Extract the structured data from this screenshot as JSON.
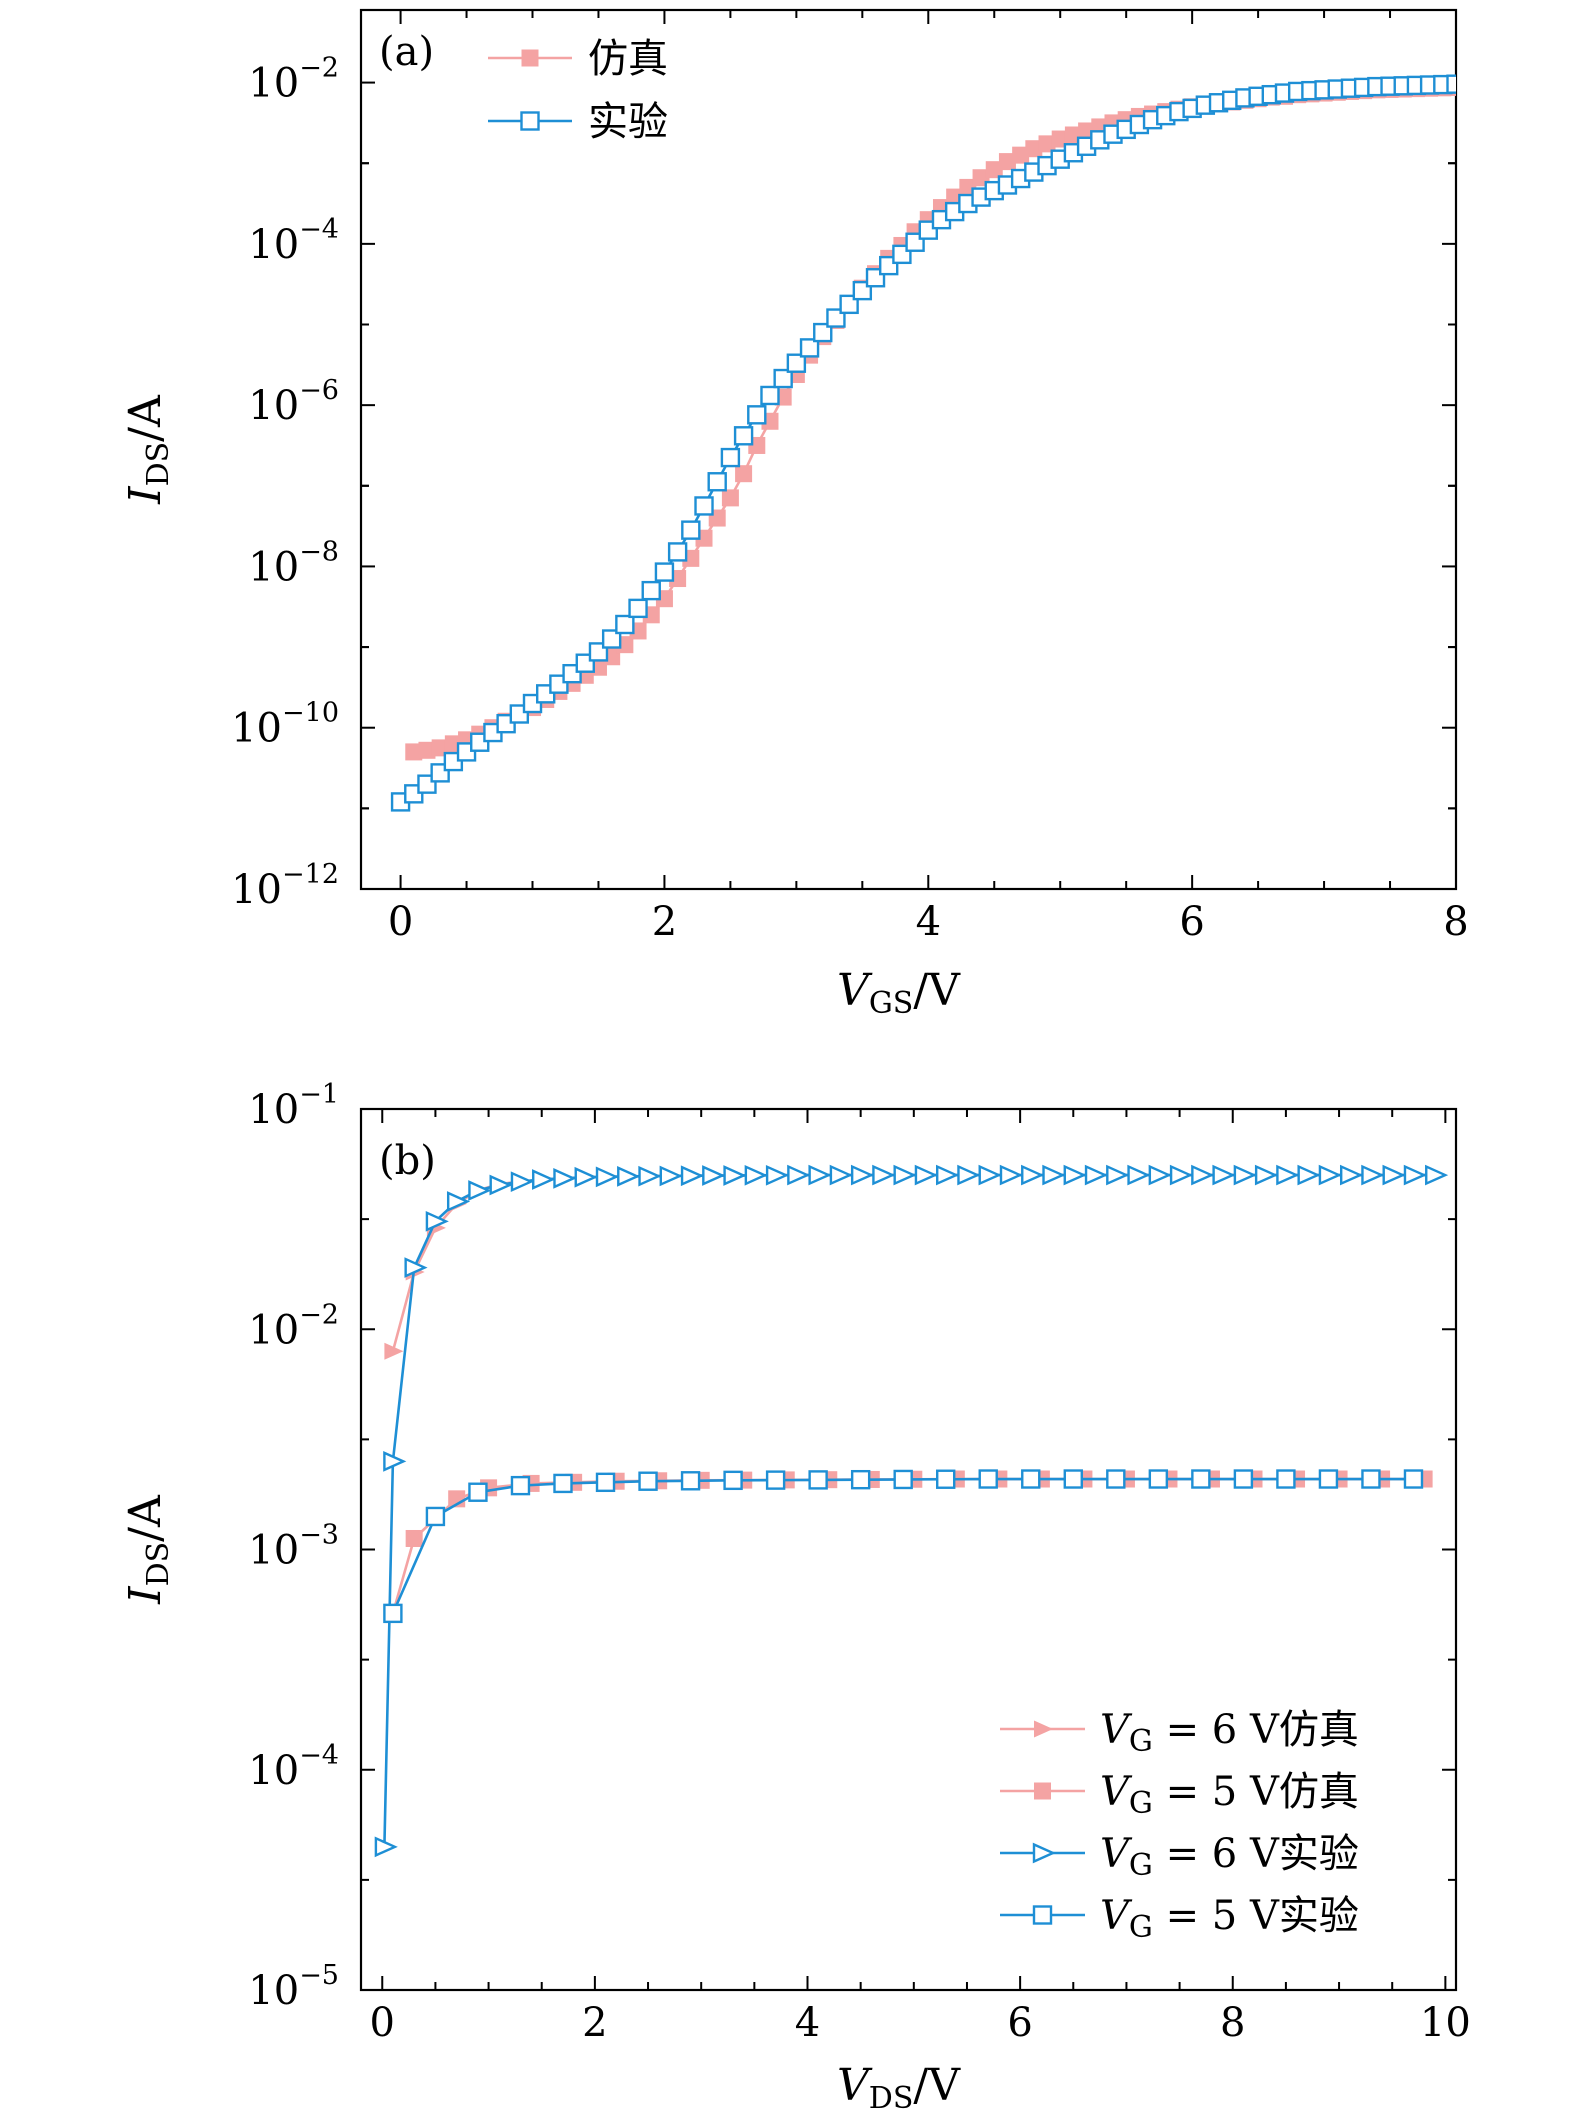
{
  "chart_data": [
    {
      "type": "line",
      "panel_label": "(a)",
      "title": "",
      "xlabel": {
        "main": "V",
        "sub": "GS",
        "unit": "/V"
      },
      "ylabel": {
        "main": "I",
        "sub": "DS",
        "unit": "/A"
      },
      "xlim": [
        -0.3,
        8
      ],
      "ylim_log10": [
        -12,
        -1.1
      ],
      "yscale": "log",
      "xticks": [
        0,
        2,
        4,
        6,
        8
      ],
      "xtick_labels": [
        "0",
        "2",
        "4",
        "6",
        "8"
      ],
      "yticks_exp": [
        -12,
        -10,
        -8,
        -6,
        -4,
        -2
      ],
      "ytick_labels": [
        {
          "base": "10",
          "exp": "−12"
        },
        {
          "base": "10",
          "exp": "−10"
        },
        {
          "base": "10",
          "exp": "−8"
        },
        {
          "base": "10",
          "exp": "−6"
        },
        {
          "base": "10",
          "exp": "−4"
        },
        {
          "base": "10",
          "exp": "−2"
        }
      ],
      "legend_position": "top-left",
      "series": [
        {
          "name": "仿真",
          "marker": "square-filled",
          "color": "#F4A3A3",
          "x": [
            0.1,
            0.2,
            0.3,
            0.4,
            0.5,
            0.6,
            0.7,
            0.8,
            0.9,
            1.0,
            1.1,
            1.2,
            1.3,
            1.4,
            1.5,
            1.6,
            1.7,
            1.8,
            1.9,
            2.0,
            2.1,
            2.2,
            2.3,
            2.4,
            2.5,
            2.6,
            2.7,
            2.8,
            2.9,
            3.0,
            3.1,
            3.2,
            3.3,
            3.4,
            3.5,
            3.6,
            3.7,
            3.8,
            3.9,
            4.0,
            4.1,
            4.2,
            4.3,
            4.4,
            4.5,
            4.6,
            4.7,
            4.8,
            4.9,
            5.0,
            5.1,
            5.2,
            5.3,
            5.4,
            5.5,
            5.6,
            5.7,
            5.8,
            5.9,
            6.0,
            6.1,
            6.2,
            6.3,
            6.4,
            6.5,
            6.6,
            6.7,
            6.8,
            6.9,
            7.0,
            7.1,
            7.2,
            7.3,
            7.4,
            7.5,
            7.6,
            7.7,
            7.8,
            7.9,
            8.0
          ],
          "log10_y": [
            -10.3,
            -10.28,
            -10.25,
            -10.2,
            -10.15,
            -10.08,
            -10.0,
            -9.92,
            -9.83,
            -9.75,
            -9.65,
            -9.55,
            -9.45,
            -9.35,
            -9.25,
            -9.12,
            -8.97,
            -8.8,
            -8.6,
            -8.4,
            -8.15,
            -7.9,
            -7.65,
            -7.4,
            -7.15,
            -6.85,
            -6.5,
            -6.2,
            -5.9,
            -5.62,
            -5.38,
            -5.15,
            -4.95,
            -4.75,
            -4.55,
            -4.37,
            -4.18,
            -4.02,
            -3.85,
            -3.7,
            -3.55,
            -3.42,
            -3.3,
            -3.18,
            -3.08,
            -2.98,
            -2.9,
            -2.82,
            -2.76,
            -2.7,
            -2.65,
            -2.6,
            -2.55,
            -2.5,
            -2.46,
            -2.42,
            -2.39,
            -2.36,
            -2.33,
            -2.3,
            -2.28,
            -2.26,
            -2.24,
            -2.22,
            -2.2,
            -2.18,
            -2.17,
            -2.15,
            -2.14,
            -2.13,
            -2.12,
            -2.11,
            -2.1,
            -2.09,
            -2.085,
            -2.08,
            -2.075,
            -2.07,
            -2.065,
            -2.06
          ]
        },
        {
          "name": "实验",
          "marker": "square-open",
          "color": "#1E8FD5",
          "x": [
            0.0,
            0.1,
            0.2,
            0.3,
            0.4,
            0.5,
            0.6,
            0.7,
            0.8,
            0.9,
            1.0,
            1.1,
            1.2,
            1.3,
            1.4,
            1.5,
            1.6,
            1.7,
            1.8,
            1.9,
            2.0,
            2.1,
            2.2,
            2.3,
            2.4,
            2.5,
            2.6,
            2.7,
            2.8,
            2.9,
            3.0,
            3.1,
            3.2,
            3.3,
            3.4,
            3.5,
            3.6,
            3.7,
            3.8,
            3.9,
            4.0,
            4.1,
            4.2,
            4.3,
            4.4,
            4.5,
            4.6,
            4.7,
            4.8,
            4.9,
            5.0,
            5.1,
            5.2,
            5.3,
            5.4,
            5.5,
            5.6,
            5.7,
            5.8,
            5.9,
            6.0,
            6.1,
            6.2,
            6.3,
            6.4,
            6.5,
            6.6,
            6.7,
            6.8,
            6.9,
            7.0,
            7.1,
            7.2,
            7.3,
            7.4,
            7.5,
            7.6,
            7.7,
            7.8,
            7.9,
            8.0
          ],
          "log10_y": [
            -10.92,
            -10.82,
            -10.7,
            -10.56,
            -10.42,
            -10.3,
            -10.18,
            -10.06,
            -9.95,
            -9.83,
            -9.7,
            -9.58,
            -9.46,
            -9.33,
            -9.2,
            -9.06,
            -8.9,
            -8.72,
            -8.52,
            -8.3,
            -8.07,
            -7.82,
            -7.55,
            -7.25,
            -6.95,
            -6.65,
            -6.38,
            -6.12,
            -5.88,
            -5.67,
            -5.48,
            -5.29,
            -5.1,
            -4.92,
            -4.75,
            -4.58,
            -4.42,
            -4.27,
            -4.13,
            -3.98,
            -3.83,
            -3.7,
            -3.6,
            -3.5,
            -3.42,
            -3.34,
            -3.27,
            -3.19,
            -3.11,
            -3.03,
            -2.95,
            -2.87,
            -2.79,
            -2.71,
            -2.64,
            -2.58,
            -2.52,
            -2.46,
            -2.41,
            -2.36,
            -2.32,
            -2.28,
            -2.25,
            -2.22,
            -2.19,
            -2.17,
            -2.15,
            -2.13,
            -2.11,
            -2.1,
            -2.09,
            -2.08,
            -2.07,
            -2.06,
            -2.05,
            -2.045,
            -2.04,
            -2.035,
            -2.03,
            -2.025,
            -2.02
          ]
        }
      ]
    },
    {
      "type": "line",
      "panel_label": "(b)",
      "title": "",
      "xlabel": {
        "main": "V",
        "sub": "DS",
        "unit": "/V"
      },
      "ylabel": {
        "main": "I",
        "sub": "DS",
        "unit": "/A"
      },
      "xlim": [
        -0.2,
        10.1
      ],
      "ylim_log10": [
        -5,
        -1
      ],
      "yscale": "log",
      "xticks": [
        0,
        2,
        4,
        6,
        8,
        10
      ],
      "xtick_labels": [
        "0",
        "2",
        "4",
        "6",
        "8",
        "10"
      ],
      "yticks_exp": [
        -5,
        -4,
        -3,
        -2,
        -1
      ],
      "ytick_labels": [
        {
          "base": "10",
          "exp": "−5"
        },
        {
          "base": "10",
          "exp": "−4"
        },
        {
          "base": "10",
          "exp": "−3"
        },
        {
          "base": "10",
          "exp": "−2"
        },
        {
          "base": "10",
          "exp": "−1"
        }
      ],
      "legend_position": "bottom-right",
      "series": [
        {
          "name": "仿真",
          "legend_label": {
            "main": "V",
            "sub": "G",
            "text": " = 6 V仿真"
          },
          "marker": "triangle-right-filled",
          "color": "#F4A3A3",
          "x": [
            0.1,
            0.3,
            0.5,
            0.7,
            0.9,
            1.1,
            1.3,
            1.5,
            1.7,
            1.9,
            2.1,
            2.3,
            2.5,
            2.7,
            2.9,
            3.1,
            3.3,
            3.5,
            3.7,
            3.9,
            4.1,
            4.3,
            4.5,
            4.7,
            4.9,
            5.1,
            5.3,
            5.5,
            5.7,
            5.9,
            6.1,
            6.3,
            6.5,
            6.7,
            6.9,
            7.1,
            7.3,
            7.5,
            7.7,
            7.9,
            8.1,
            8.3,
            8.5,
            8.7,
            8.9,
            9.1,
            9.3,
            9.5,
            9.7,
            9.9
          ],
          "log10_y": [
            -2.1,
            -1.74,
            -1.54,
            -1.43,
            -1.37,
            -1.34,
            -1.33,
            -1.32,
            -1.315,
            -1.31,
            -1.308,
            -1.306,
            -1.305,
            -1.304,
            -1.303,
            -1.302,
            -1.302,
            -1.301,
            -1.301,
            -1.3,
            -1.3,
            -1.3,
            -1.3,
            -1.3,
            -1.3,
            -1.3,
            -1.3,
            -1.3,
            -1.3,
            -1.3,
            -1.3,
            -1.3,
            -1.3,
            -1.3,
            -1.3,
            -1.3,
            -1.3,
            -1.3,
            -1.3,
            -1.3,
            -1.3,
            -1.3,
            -1.3,
            -1.3,
            -1.3,
            -1.3,
            -1.3,
            -1.3,
            -1.3,
            -1.3
          ]
        },
        {
          "name": "仿真",
          "legend_label": {
            "main": "V",
            "sub": "G",
            "text": " = 5 V仿真"
          },
          "marker": "square-filled",
          "color": "#F4A3A3",
          "x": [
            0.1,
            0.3,
            0.7,
            1.0,
            1.4,
            1.8,
            2.2,
            2.6,
            3.0,
            3.4,
            3.8,
            4.2,
            4.6,
            5.0,
            5.4,
            5.8,
            6.2,
            6.6,
            7.0,
            7.4,
            7.8,
            8.2,
            8.6,
            9.0,
            9.4,
            9.8
          ],
          "log10_y": [
            -3.29,
            -2.95,
            -2.77,
            -2.72,
            -2.7,
            -2.695,
            -2.69,
            -2.688,
            -2.686,
            -2.685,
            -2.684,
            -2.683,
            -2.682,
            -2.681,
            -2.68,
            -2.68,
            -2.68,
            -2.68,
            -2.68,
            -2.68,
            -2.68,
            -2.68,
            -2.68,
            -2.68,
            -2.68,
            -2.68
          ]
        },
        {
          "name": "实验",
          "legend_label": {
            "main": "V",
            "sub": "G",
            "text": " = 6 V实验"
          },
          "marker": "triangle-right-open",
          "color": "#1E8FD5",
          "x": [
            0.02,
            0.1,
            0.3,
            0.5,
            0.7,
            0.9,
            1.1,
            1.3,
            1.5,
            1.7,
            1.9,
            2.1,
            2.3,
            2.5,
            2.7,
            2.9,
            3.1,
            3.3,
            3.5,
            3.7,
            3.9,
            4.1,
            4.3,
            4.5,
            4.7,
            4.9,
            5.1,
            5.3,
            5.5,
            5.7,
            5.9,
            6.1,
            6.3,
            6.5,
            6.7,
            6.9,
            7.1,
            7.3,
            7.5,
            7.7,
            7.9,
            8.1,
            8.3,
            8.5,
            8.7,
            8.9,
            9.1,
            9.3,
            9.5,
            9.7,
            9.9
          ],
          "log10_y": [
            -4.35,
            -2.6,
            -1.72,
            -1.51,
            -1.42,
            -1.37,
            -1.345,
            -1.33,
            -1.32,
            -1.315,
            -1.31,
            -1.308,
            -1.306,
            -1.305,
            -1.304,
            -1.303,
            -1.302,
            -1.302,
            -1.301,
            -1.301,
            -1.3,
            -1.3,
            -1.3,
            -1.3,
            -1.3,
            -1.3,
            -1.3,
            -1.3,
            -1.3,
            -1.3,
            -1.3,
            -1.3,
            -1.3,
            -1.3,
            -1.3,
            -1.3,
            -1.3,
            -1.3,
            -1.3,
            -1.3,
            -1.3,
            -1.3,
            -1.3,
            -1.3,
            -1.3,
            -1.3,
            -1.3,
            -1.3,
            -1.3,
            -1.3,
            -1.3
          ]
        },
        {
          "name": "实验",
          "legend_label": {
            "main": "V",
            "sub": "G",
            "text": " = 5 V实验"
          },
          "marker": "square-open",
          "color": "#1E8FD5",
          "x": [
            0.1,
            0.5,
            0.9,
            1.3,
            1.7,
            2.1,
            2.5,
            2.9,
            3.3,
            3.7,
            4.1,
            4.5,
            4.9,
            5.3,
            5.7,
            6.1,
            6.5,
            6.9,
            7.3,
            7.7,
            8.1,
            8.5,
            8.9,
            9.3,
            9.7
          ],
          "log10_y": [
            -3.29,
            -2.85,
            -2.74,
            -2.71,
            -2.7,
            -2.695,
            -2.69,
            -2.688,
            -2.686,
            -2.685,
            -2.684,
            -2.683,
            -2.682,
            -2.681,
            -2.68,
            -2.68,
            -2.68,
            -2.68,
            -2.68,
            -2.68,
            -2.68,
            -2.68,
            -2.68,
            -2.68,
            -2.68
          ]
        }
      ]
    }
  ]
}
